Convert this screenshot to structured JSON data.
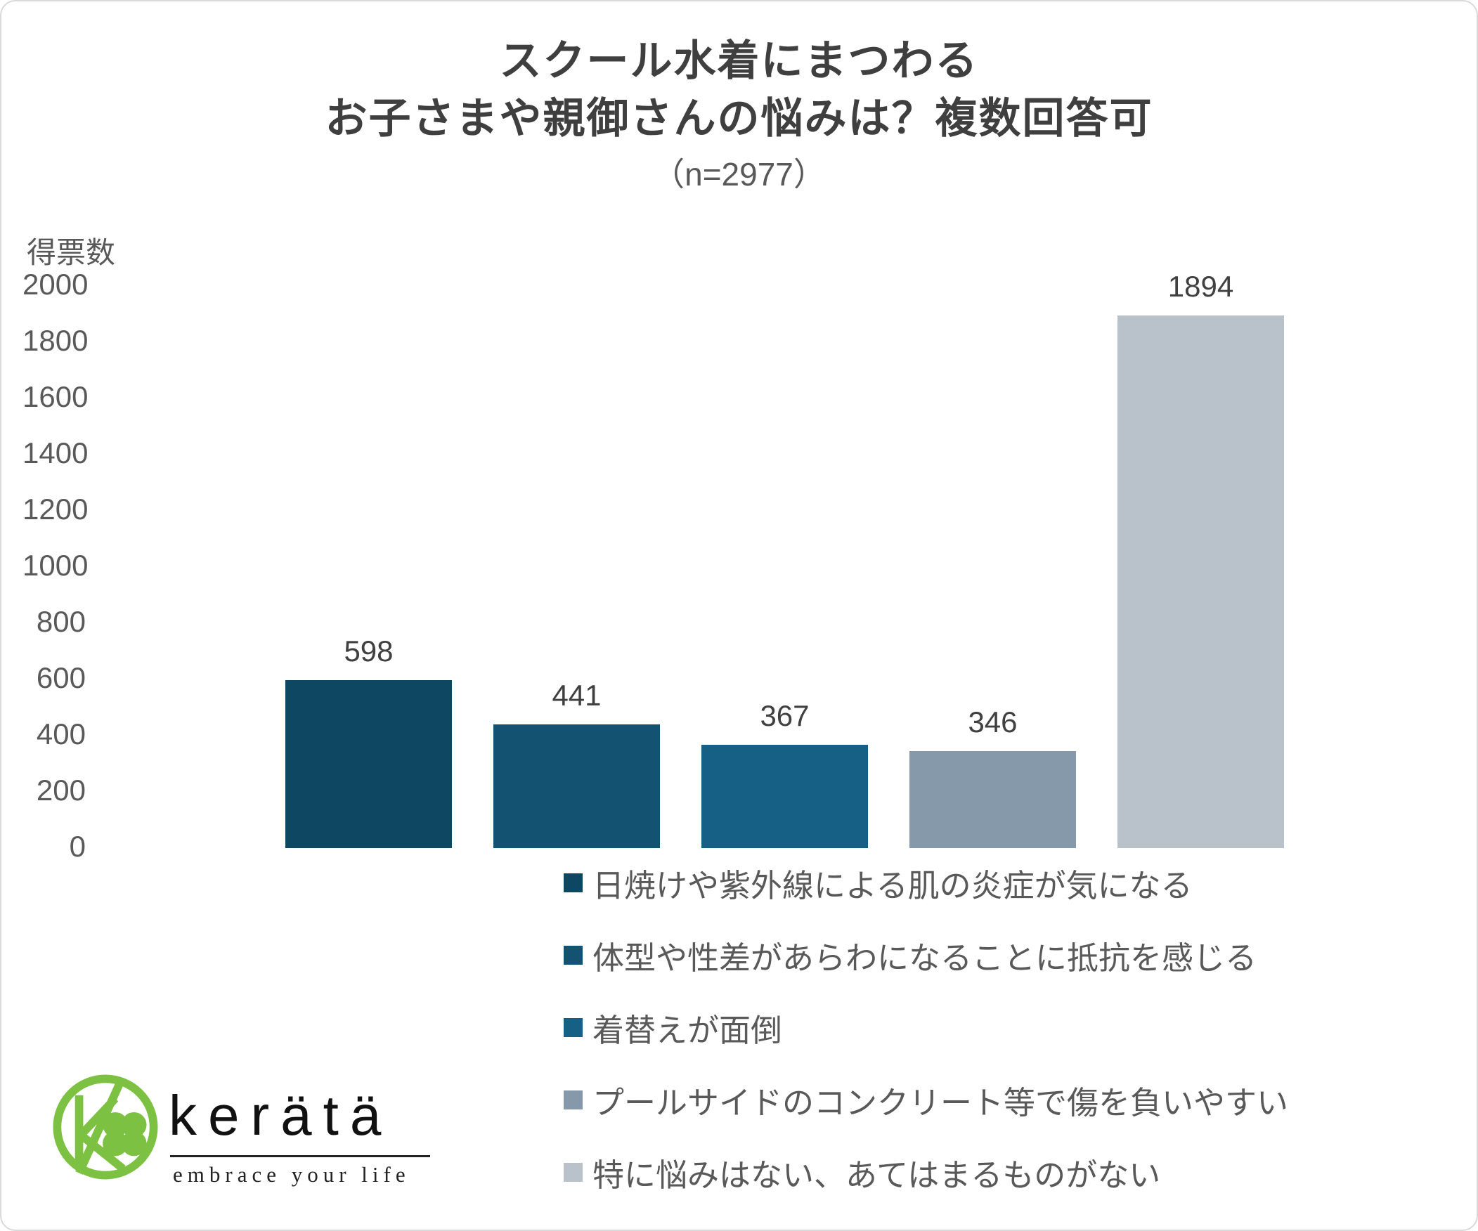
{
  "chart_data": {
    "type": "bar",
    "title_lines": [
      "スクール水着にまつわる",
      "お子さまや親御さんの悩みは？複数回答可"
    ],
    "subtitle": "（n=2977）",
    "ylabel": "得票数",
    "ylim": [
      0,
      2000
    ],
    "ytick_interval": 200,
    "grid": false,
    "legend_position": "bottom-left-of-center",
    "categories": [
      "日焼けや紫外線による肌の炎症が気になる",
      "体型や性差があらわになることに抵抗を感じる",
      "着替えが面倒",
      "プールサイドのコンクリート等で傷を負いやすい",
      "特に悩みはない、あてはまるものがない"
    ],
    "values": [
      598,
      441,
      367,
      346,
      1894
    ],
    "bar_colors": [
      "#0d4761",
      "#135371",
      "#165f85",
      "#8699ab",
      "#b9c2ca"
    ]
  },
  "footer_logo": {
    "brand": "kerätä",
    "tagline": "embrace your life",
    "brand_color": "#7cc142"
  }
}
